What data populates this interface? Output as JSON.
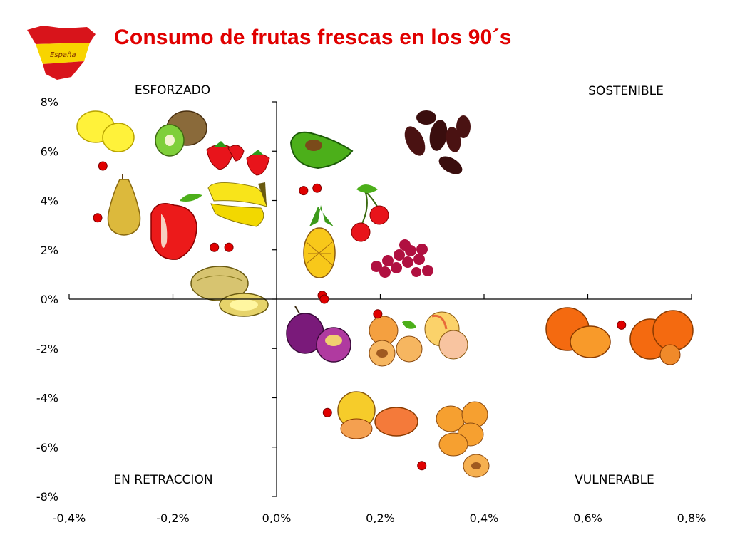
{
  "title": "Consumo de frutas frescas en los 90´s",
  "logo_text": "España",
  "colors": {
    "title": "#e00000",
    "point": "#e00000",
    "point_outline": "#7a0000",
    "axis": "#000000",
    "flag_red": "#d8141b",
    "flag_yellow": "#f8d400"
  },
  "chart_data": {
    "type": "scatter",
    "title": "Consumo de frutas frescas en los 90´s",
    "xlabel": "",
    "ylabel": "",
    "xlim": [
      -0.4,
      0.8
    ],
    "ylim": [
      -8,
      8
    ],
    "x_ticks": [
      -0.4,
      -0.2,
      0.0,
      0.2,
      0.4,
      0.6,
      0.8
    ],
    "y_ticks": [
      8,
      6,
      4,
      2,
      0,
      -2,
      -4,
      -6,
      -8
    ],
    "x_tick_labels": [
      "-0,4%",
      "-0,2%",
      "0,0%",
      "0,2%",
      "0,4%",
      "0,6%",
      "0,8%"
    ],
    "y_tick_labels": [
      "8%",
      "6%",
      "4%",
      "2%",
      "0%",
      "-2%",
      "-4%",
      "-6%",
      "-8%"
    ],
    "grid": false,
    "quadrant_labels": {
      "top_left": "ESFORZADO",
      "top_right": "SOSTENIBLE",
      "bottom_left": "EN RETRACCION",
      "bottom_right": "VULNERABLE"
    },
    "series": [
      {
        "points": [
          {
            "x": -0.335,
            "y": 5.4
          },
          {
            "x": -0.345,
            "y": 3.3
          },
          {
            "x": -0.12,
            "y": 2.1
          },
          {
            "x": -0.092,
            "y": 2.1
          },
          {
            "x": 0.052,
            "y": 4.4
          },
          {
            "x": 0.078,
            "y": 4.5
          },
          {
            "x": 0.088,
            "y": 0.15
          },
          {
            "x": 0.092,
            "y": 0.0
          },
          {
            "x": 0.195,
            "y": -0.6
          },
          {
            "x": 0.098,
            "y": -4.6
          },
          {
            "x": 0.28,
            "y": -6.75
          },
          {
            "x": 0.665,
            "y": -1.05
          }
        ]
      }
    ]
  },
  "icons": [
    "lemon-icon",
    "kiwi-icon",
    "strawberry-icon",
    "avocado-icon",
    "dates-icon",
    "pear-icon",
    "apple-icon",
    "banana-icon",
    "cherry-icon",
    "pineapple-icon",
    "grapes-icon",
    "melon-icon",
    "plum-icon",
    "apricot-icon",
    "peach-icon",
    "orange-icon",
    "grapefruit-icon",
    "loquat-icon"
  ]
}
